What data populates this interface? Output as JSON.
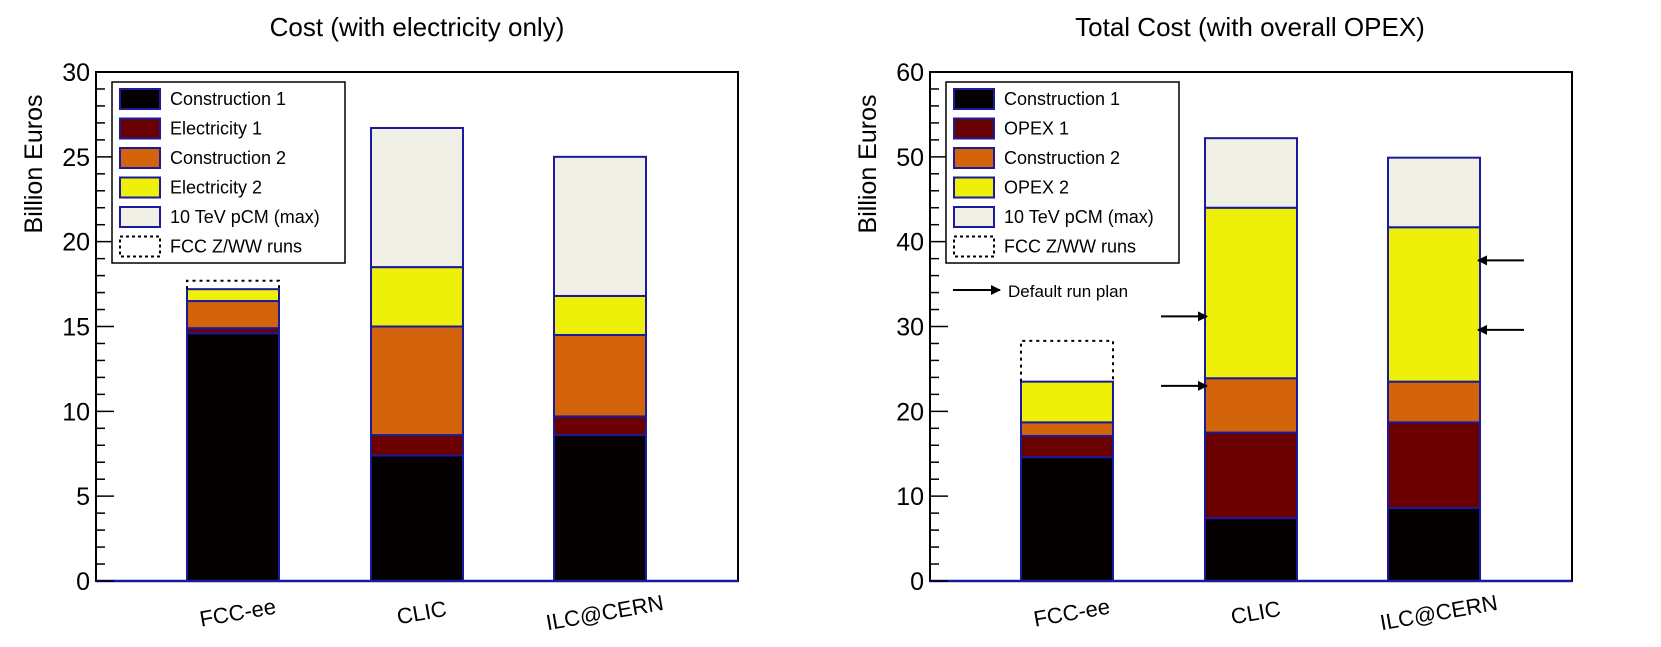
{
  "chart_data": [
    {
      "type": "bar",
      "stacked": true,
      "title": "Cost (with electricity only)",
      "ylabel": "Billion Euros",
      "xlabel": "",
      "ylim": [
        0,
        30
      ],
      "yticks": [
        0,
        5,
        10,
        15,
        20,
        25,
        30
      ],
      "categories": [
        "FCC-ee",
        "CLIC",
        "ILC@CERN"
      ],
      "series": [
        {
          "name": "Construction 1",
          "color": "#050000",
          "values": [
            14.6,
            7.4,
            8.6
          ]
        },
        {
          "name": "Electricity 1",
          "color": "#6b0000",
          "values": [
            0.3,
            1.2,
            1.1
          ]
        },
        {
          "name": "Construction 2",
          "color": "#d4640c",
          "values": [
            1.6,
            6.4,
            4.8
          ]
        },
        {
          "name": "Electricity 2",
          "color": "#eef00a",
          "values": [
            0.7,
            3.5,
            2.3
          ]
        },
        {
          "name": "10 TeV pCM (max)",
          "color": "#f0efe6",
          "values": [
            0,
            8.2,
            8.2
          ]
        }
      ],
      "dotted_series": {
        "name": "FCC Z/WW runs",
        "values": [
          0.5,
          0,
          0
        ]
      },
      "legend_position": "top-left",
      "arrows": []
    },
    {
      "type": "bar",
      "stacked": true,
      "title": "Total Cost (with overall OPEX)",
      "ylabel": "Billion Euros",
      "xlabel": "",
      "ylim": [
        0,
        60
      ],
      "yticks": [
        0,
        10,
        20,
        30,
        40,
        50,
        60
      ],
      "categories": [
        "FCC-ee",
        "CLIC",
        "ILC@CERN"
      ],
      "series": [
        {
          "name": "Construction 1",
          "color": "#050000",
          "values": [
            14.6,
            7.4,
            8.6
          ]
        },
        {
          "name": "OPEX 1",
          "color": "#6b0000",
          "values": [
            2.5,
            10.1,
            10.1
          ]
        },
        {
          "name": "Construction 2",
          "color": "#d4640c",
          "values": [
            1.6,
            6.4,
            4.8
          ]
        },
        {
          "name": "OPEX 2",
          "color": "#eef00a",
          "values": [
            4.8,
            20.1,
            18.2
          ]
        },
        {
          "name": "10 TeV pCM (max)",
          "color": "#f0efe6",
          "values": [
            0,
            8.2,
            8.2
          ]
        }
      ],
      "dotted_series": {
        "name": "FCC Z/WW runs",
        "values": [
          4.8,
          0,
          0
        ]
      },
      "legend_position": "top-left",
      "annotation": "Default run plan",
      "arrows": [
        {
          "category": "CLIC",
          "side": "left",
          "value": 31.2
        },
        {
          "category": "CLIC",
          "side": "left",
          "value": 23.0
        },
        {
          "category": "ILC@CERN",
          "side": "right",
          "value": 37.8
        },
        {
          "category": "ILC@CERN",
          "side": "right",
          "value": 29.6
        }
      ]
    }
  ]
}
